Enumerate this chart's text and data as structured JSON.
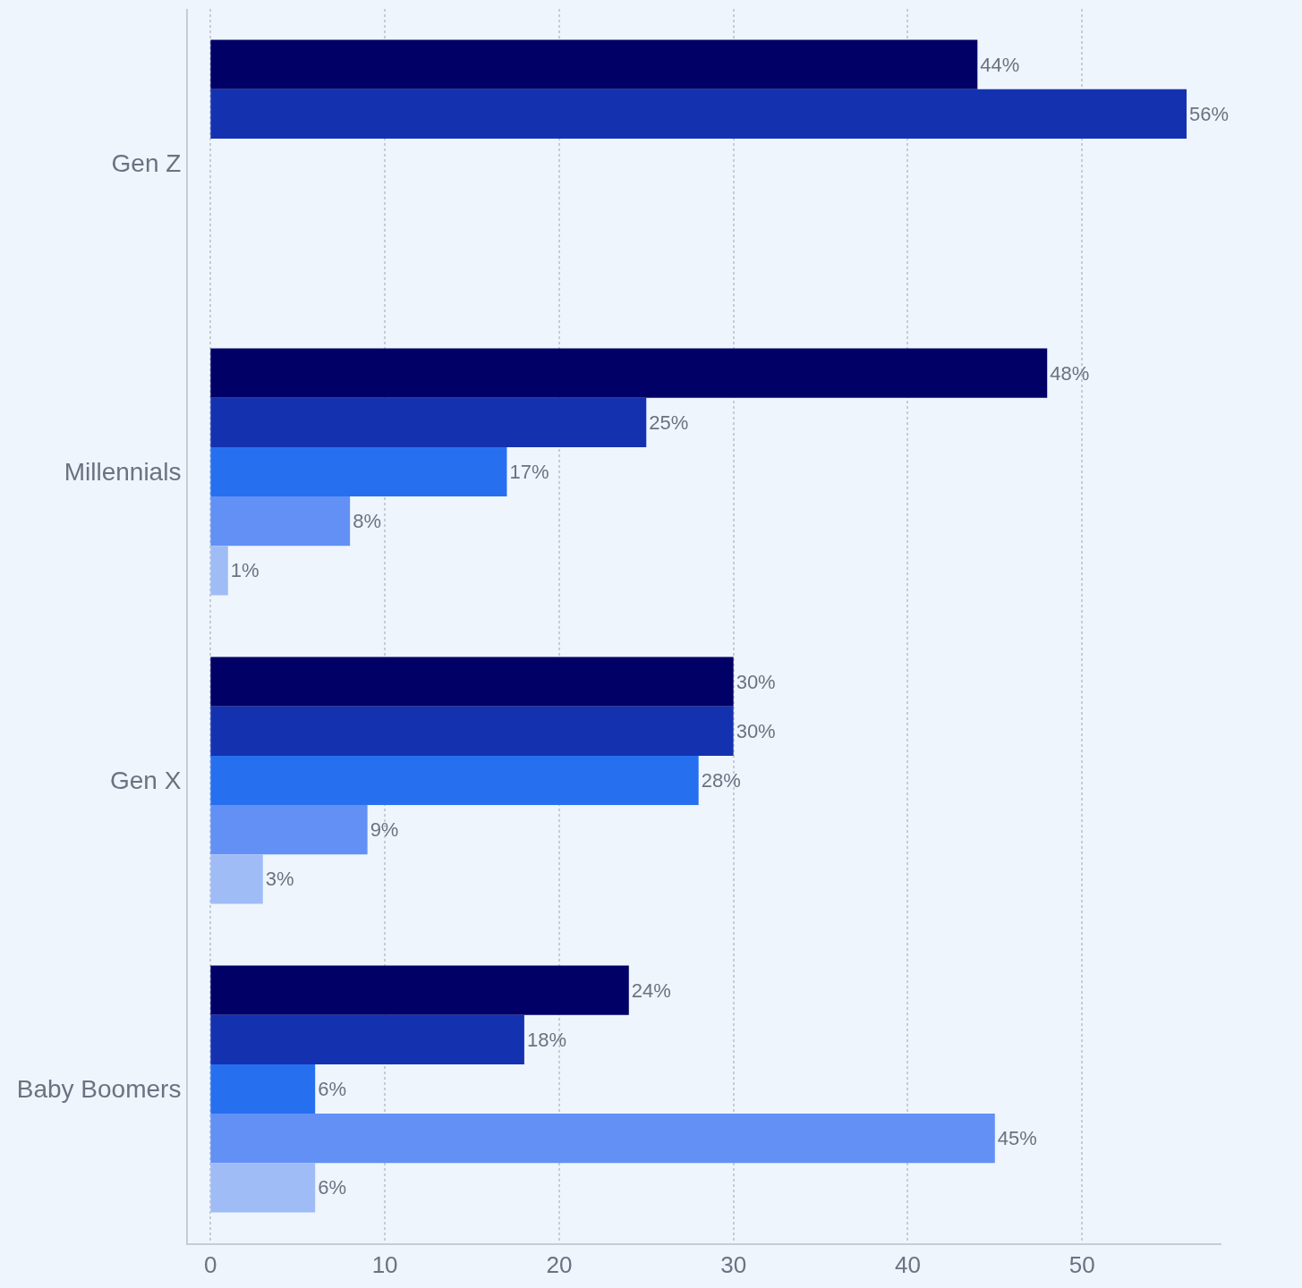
{
  "chart_data": {
    "type": "bar",
    "orientation": "horizontal",
    "categories": [
      "Gen Z",
      "Millennials",
      "Gen X",
      "Baby Boomers"
    ],
    "series": [
      {
        "color": "#000066",
        "values": [
          44,
          48,
          30,
          24
        ],
        "value_labels": [
          "44%",
          "48%",
          "30%",
          "24%"
        ]
      },
      {
        "color": "#1432b0",
        "values": [
          56,
          25,
          30,
          18
        ],
        "value_labels": [
          "56%",
          "25%",
          "30%",
          "18%"
        ]
      },
      {
        "color": "#2670f0",
        "values": [
          null,
          17,
          28,
          6
        ],
        "value_labels": [
          null,
          "17%",
          "28%",
          "6%"
        ]
      },
      {
        "color": "#6290f5",
        "values": [
          null,
          8,
          9,
          45
        ],
        "value_labels": [
          null,
          "8%",
          "9%",
          "45%"
        ]
      },
      {
        "color": "#a0bcf7",
        "values": [
          null,
          1,
          3,
          6
        ],
        "value_labels": [
          null,
          "1%",
          "3%",
          "6%"
        ]
      }
    ],
    "xlim": [
      -1.3,
      58
    ],
    "xticks": [
      0,
      10,
      20,
      30,
      40,
      50
    ],
    "grid": "x"
  }
}
